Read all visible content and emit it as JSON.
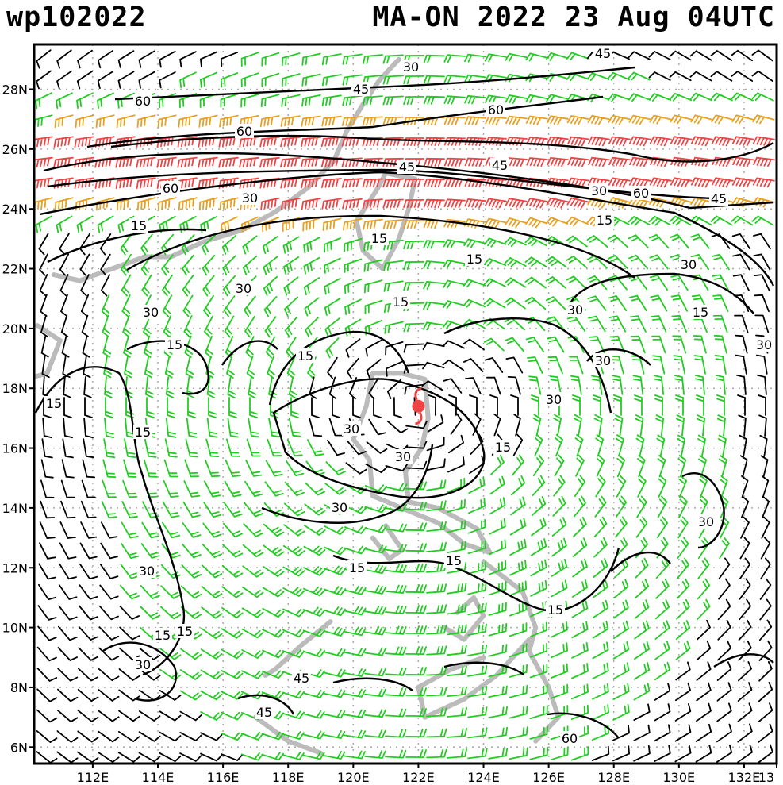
{
  "header": {
    "storm_id": "wp102022",
    "storm_info": "MA-ON 2022 23 Aug 04UTC"
  },
  "map": {
    "lat_labels": [
      "28N",
      "26N",
      "24N",
      "22N",
      "20N",
      "18N",
      "16N",
      "14N",
      "12N",
      "10N",
      "8N",
      "6N"
    ],
    "lon_labels": [
      "112E",
      "114E",
      "116E",
      "118E",
      "120E",
      "122E",
      "124E",
      "126E",
      "128E",
      "130E",
      "132E",
      "13"
    ],
    "contour_levels": [
      "15",
      "30",
      "45",
      "60"
    ],
    "contour_labels": [
      "30",
      "45",
      "45",
      "60",
      "60",
      "60",
      "45",
      "45",
      "60",
      "30",
      "30",
      "60",
      "45",
      "15",
      "15",
      "15",
      "15",
      "30",
      "30",
      "30",
      "15",
      "15",
      "30",
      "15",
      "30",
      "30",
      "15",
      "15",
      "15",
      "30",
      "30",
      "30",
      "15",
      "30",
      "30",
      "30",
      "15",
      "15",
      "15",
      "15",
      "15"
    ],
    "colors": {
      "calm": "#000000",
      "light": "#22cc22",
      "moderate": "#e8a020",
      "strong": "#ee4444",
      "coastline": "#bbbbbb",
      "grid": "#aaaaaa",
      "storm_center": "#ee4444"
    },
    "storm_center": {
      "lon": 122,
      "lat": 17.4
    }
  }
}
